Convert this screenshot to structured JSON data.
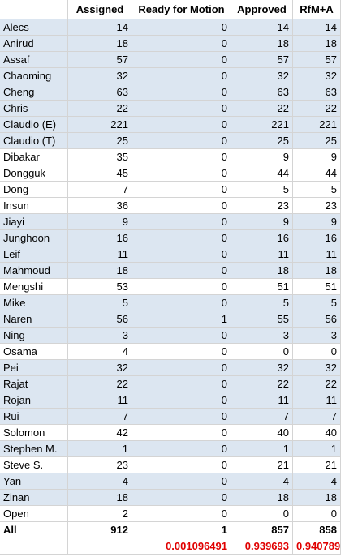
{
  "table": {
    "header": [
      "Assigned",
      "Ready for Motion",
      "Approved",
      "RfM+A"
    ],
    "rows": [
      [
        "Alecs",
        14,
        0,
        14,
        14
      ],
      [
        "Anirud",
        18,
        0,
        18,
        18
      ],
      [
        "Assaf",
        57,
        0,
        57,
        57
      ],
      [
        "Chaoming",
        32,
        0,
        32,
        32
      ],
      [
        "Cheng",
        63,
        0,
        63,
        63
      ],
      [
        "Chris",
        22,
        0,
        22,
        22
      ],
      [
        "Claudio (E)",
        221,
        0,
        221,
        221
      ],
      [
        "Claudio (T)",
        25,
        0,
        25,
        25
      ],
      [
        "Dibakar",
        35,
        0,
        9,
        9
      ],
      [
        "Dongguk",
        45,
        0,
        44,
        44
      ],
      [
        "Dong",
        7,
        0,
        5,
        5
      ],
      [
        "Insun",
        36,
        0,
        23,
        23
      ],
      [
        "Jiayi",
        9,
        0,
        9,
        9
      ],
      [
        "Junghoon",
        16,
        0,
        16,
        16
      ],
      [
        "Leif",
        11,
        0,
        11,
        11
      ],
      [
        "Mahmoud",
        18,
        0,
        18,
        18
      ],
      [
        "Mengshi",
        53,
        0,
        51,
        51
      ],
      [
        "Mike",
        5,
        0,
        5,
        5
      ],
      [
        "Naren",
        56,
        1,
        55,
        56
      ],
      [
        "Ning",
        3,
        0,
        3,
        3
      ],
      [
        "Osama",
        4,
        0,
        0,
        0
      ],
      [
        "Pei",
        32,
        0,
        32,
        32
      ],
      [
        "Rajat",
        22,
        0,
        22,
        22
      ],
      [
        "Rojan",
        11,
        0,
        11,
        11
      ],
      [
        "Rui",
        7,
        0,
        7,
        7
      ],
      [
        "Solomon",
        42,
        0,
        40,
        40
      ],
      [
        "Stephen M.",
        1,
        0,
        1,
        1
      ],
      [
        "Steve S.",
        23,
        0,
        21,
        21
      ],
      [
        "Yan",
        4,
        0,
        4,
        4
      ],
      [
        "Zinan",
        18,
        0,
        18,
        18
      ],
      [
        "Open",
        2,
        0,
        0,
        0
      ]
    ],
    "total": [
      "All",
      912,
      1,
      857,
      858
    ],
    "ratios": [
      0.001096491,
      0.939693,
      0.940789
    ]
  }
}
